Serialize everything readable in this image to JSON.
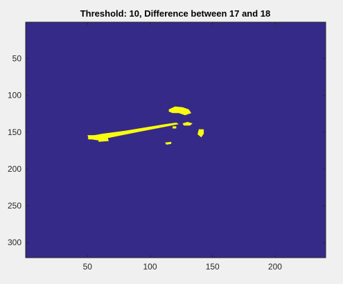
{
  "colors": {
    "figure_bg": "#f0f0f0",
    "background_value_0": "#352a87",
    "foreground_value_1": "#f9fb0e",
    "axis": "#262626"
  },
  "chart_data": {
    "type": "heatmap",
    "title": "Threshold: 10, Difference between 17 and 18",
    "xlabel": "",
    "ylabel": "",
    "colormap": "parula",
    "value_range": [
      0,
      1
    ],
    "image_size": {
      "width": 240,
      "height": 320
    },
    "xlim": [
      0.5,
      240.5
    ],
    "ylim": [
      0.5,
      320.5
    ],
    "y_reversed": true,
    "xticks": [
      50,
      100,
      150,
      200
    ],
    "yticks": [
      50,
      100,
      150,
      200,
      250,
      300
    ],
    "grid": false,
    "legend": "none",
    "background_value": 0,
    "foreground_regions": [
      {
        "label": "long streak",
        "value": 1,
        "polygon": [
          [
            52,
            155
          ],
          [
            62,
            152
          ],
          [
            80,
            148
          ],
          [
            98,
            143
          ],
          [
            112,
            139
          ],
          [
            121,
            137
          ],
          [
            123,
            139
          ],
          [
            108,
            144
          ],
          [
            90,
            150
          ],
          [
            72,
            156
          ],
          [
            58,
            161
          ],
          [
            50,
            159
          ]
        ]
      },
      {
        "label": "left tip blob",
        "value": 1,
        "polygon": [
          [
            50,
            154
          ],
          [
            56,
            154
          ],
          [
            56,
            159
          ],
          [
            51,
            160
          ]
        ]
      },
      {
        "label": "lower-left blob",
        "value": 1,
        "polygon": [
          [
            58,
            158
          ],
          [
            66,
            157
          ],
          [
            67,
            162
          ],
          [
            59,
            163
          ]
        ]
      },
      {
        "label": "top cluster",
        "value": 1,
        "polygon": [
          [
            115,
            119
          ],
          [
            120,
            115
          ],
          [
            126,
            116
          ],
          [
            131,
            119
          ],
          [
            133,
            124
          ],
          [
            128,
            127
          ],
          [
            123,
            124
          ],
          [
            118,
            124
          ],
          [
            115,
            122
          ]
        ]
      },
      {
        "label": "small blob right of streak",
        "value": 1,
        "polygon": [
          [
            126,
            138
          ],
          [
            130,
            136
          ],
          [
            134,
            138
          ],
          [
            132,
            141
          ],
          [
            127,
            141
          ]
        ]
      },
      {
        "label": "far right blob",
        "value": 1,
        "polygon": [
          [
            139,
            146
          ],
          [
            143,
            146
          ],
          [
            143,
            152
          ],
          [
            141,
            157
          ],
          [
            138,
            153
          ]
        ]
      },
      {
        "label": "bottom dot",
        "value": 1,
        "polygon": [
          [
            112,
            164
          ],
          [
            117,
            163
          ],
          [
            117,
            166
          ],
          [
            113,
            167
          ]
        ]
      },
      {
        "label": "dot near streak end",
        "value": 1,
        "polygon": [
          [
            118,
            142
          ],
          [
            121,
            142
          ],
          [
            121,
            145
          ],
          [
            118,
            145
          ]
        ]
      }
    ]
  }
}
